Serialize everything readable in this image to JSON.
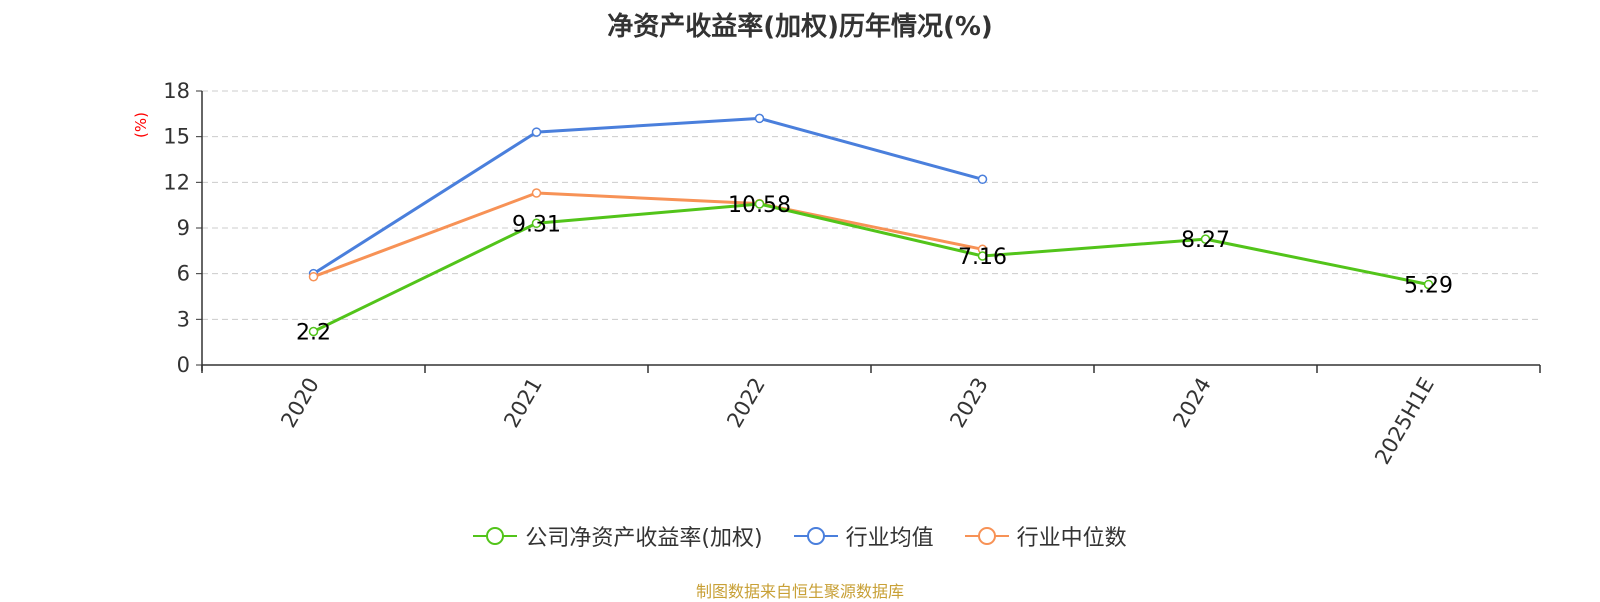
{
  "title": "净资产收益率(加权)历年情况(%)",
  "source": "制图数据来自恒生聚源数据库",
  "chart_data": {
    "type": "line",
    "title": "净资产收益率(加权)历年情况(%)",
    "ylabel": "(%)",
    "xlabel": "",
    "categories": [
      "2020",
      "2021",
      "2022",
      "2023",
      "2024",
      "2025H1E"
    ],
    "ylim": [
      0,
      18
    ],
    "yticks": [
      "0",
      "3",
      "6",
      "9",
      "12",
      "15",
      "18"
    ],
    "grid": true,
    "legend_position": "bottom",
    "series": [
      {
        "name": "公司净资产收益率(加权)",
        "color": "#52c41a",
        "values": [
          2.2,
          9.31,
          10.58,
          7.16,
          8.27,
          5.29
        ],
        "labels": [
          "2.2",
          "9.31",
          "10.58",
          "7.16",
          "8.27",
          "5.29"
        ]
      },
      {
        "name": "行业均值",
        "color": "#4a7fdc",
        "values": [
          6.0,
          15.3,
          16.2,
          12.2,
          null,
          null
        ]
      },
      {
        "name": "行业中位数",
        "color": "#f79256",
        "values": [
          5.8,
          11.3,
          10.6,
          7.6,
          null,
          null
        ]
      }
    ]
  }
}
